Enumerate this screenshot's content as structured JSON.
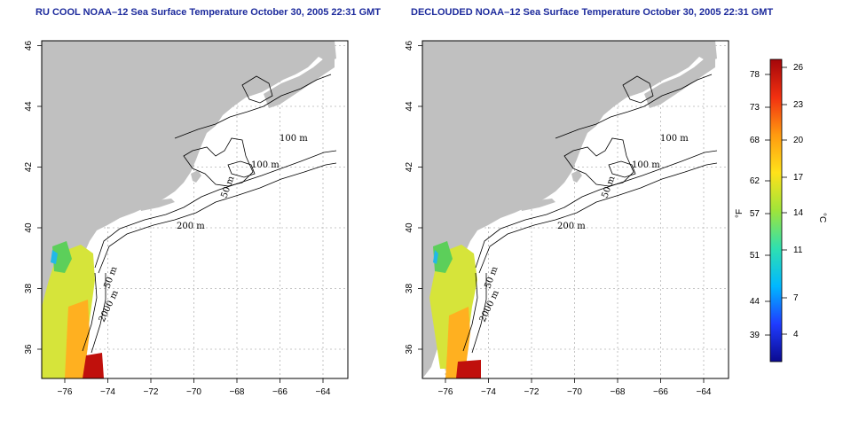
{
  "panels": [
    {
      "id": "left",
      "title": "RU COOL NOAA–12 Sea Surface Temperature October 30, 2005 22:31 GMT",
      "contour_labels": [
        "100 m",
        "100 m",
        "50 m",
        "200 m",
        "50 m",
        "2000 m"
      ]
    },
    {
      "id": "right",
      "title": "DECLOUDED NOAA–12 Sea Surface Temperature October 30, 2005 22:31 GMT",
      "contour_labels": [
        "100 m",
        "100 m",
        "50 m",
        "200 m",
        "50 m",
        "2000 m"
      ]
    }
  ],
  "axes": {
    "x_ticks": [
      "−76",
      "−74",
      "−72",
      "−70",
      "−68",
      "−66",
      "−64"
    ],
    "y_ticks": [
      "36",
      "38",
      "40",
      "42",
      "44",
      "46"
    ]
  },
  "colorbar": {
    "f_label": "°F",
    "c_label": "°C",
    "f_ticks": [
      "78",
      "73",
      "68",
      "62",
      "57",
      "51",
      "44",
      "39"
    ],
    "c_ticks": [
      "26",
      "23",
      "20",
      "17",
      "14",
      "11",
      "7",
      "4"
    ],
    "colors": [
      "#0b0a8f",
      "#1f3cff",
      "#00b8ff",
      "#2fe0b0",
      "#9fe43a",
      "#ffe21a",
      "#ff9a10",
      "#f23010",
      "#a3060a"
    ]
  },
  "colors": {
    "land": "#c0c0c0",
    "grid": "#b5b5b5",
    "title": "#1c2a9c"
  }
}
